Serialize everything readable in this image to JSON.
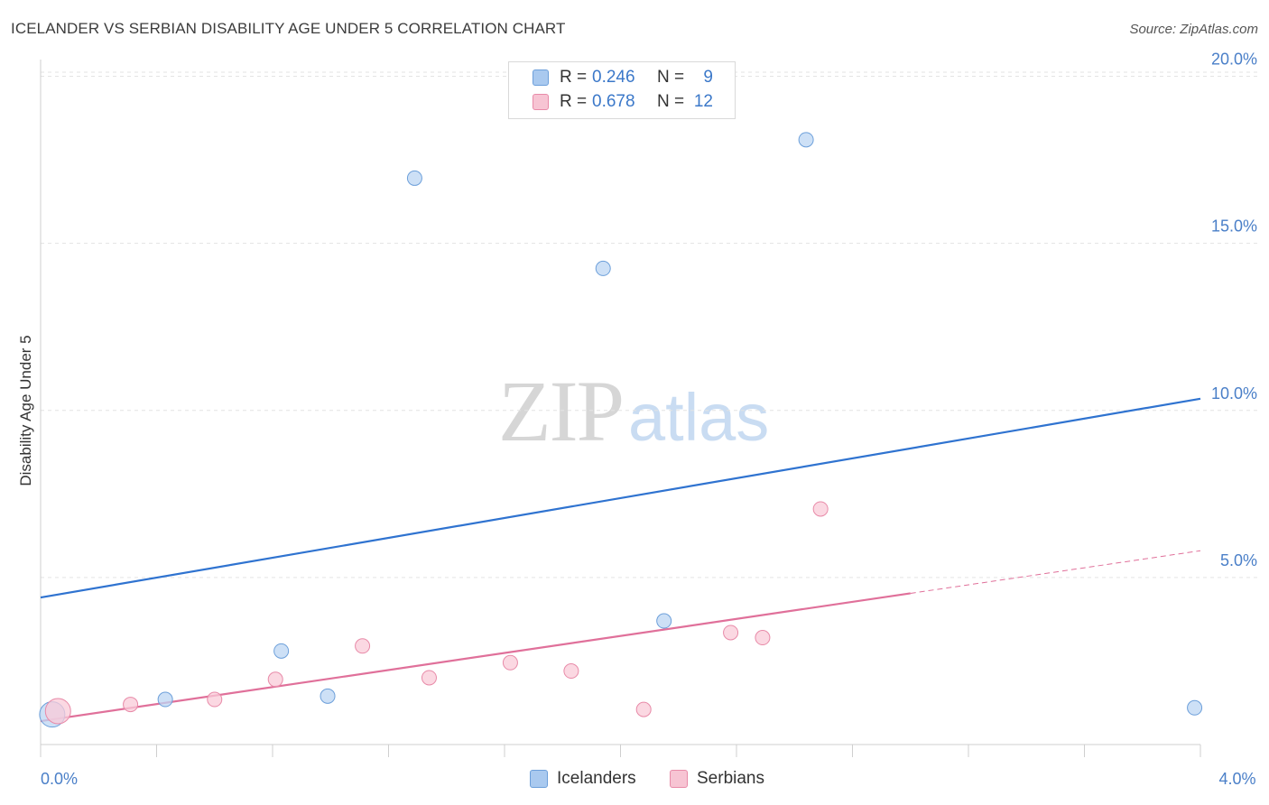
{
  "title": "ICELANDER VS SERBIAN DISABILITY AGE UNDER 5 CORRELATION CHART",
  "source": "Source: ZipAtlas.com",
  "watermark": {
    "zip": "ZIP",
    "atlas": "atlas"
  },
  "legend": {
    "rows": [
      {
        "r_label": "R =",
        "r_value": "0.246",
        "n_label": "N =",
        "n_value": "9",
        "color": "#a9c9ef",
        "border": "#6c9fda"
      },
      {
        "r_label": "R =",
        "r_value": "0.678",
        "n_label": "N =",
        "n_value": "12",
        "color": "#f7c4d3",
        "border": "#e88aa8"
      }
    ]
  },
  "bottom_legend": [
    {
      "label": "Icelanders",
      "color": "#a9c9ef",
      "border": "#6c9fda"
    },
    {
      "label": "Serbians",
      "color": "#f7c4d3",
      "border": "#e88aa8"
    }
  ],
  "chart_data": {
    "type": "scatter",
    "title": "ICELANDER VS SERBIAN DISABILITY AGE UNDER 5 CORRELATION CHART",
    "xlabel": "",
    "ylabel": "Disability Age Under 5",
    "xlim": [
      0,
      4.0
    ],
    "ylim": [
      0,
      20.5
    ],
    "x_tick_labels": [
      {
        "value": 0,
        "label": "0.0%"
      },
      {
        "value": 4.0,
        "label": "4.0%"
      }
    ],
    "y_tick_labels": [
      {
        "value": 5,
        "label": "5.0%"
      },
      {
        "value": 10,
        "label": "10.0%"
      },
      {
        "value": 15,
        "label": "15.0%"
      },
      {
        "value": 20,
        "label": "20.0%"
      }
    ],
    "series": [
      {
        "name": "Icelanders",
        "color": "#6c9fda",
        "fill": "#bcd5f3",
        "line_color": "#2f73d0",
        "trend": {
          "x": [
            0,
            4.0
          ],
          "y": [
            4.4,
            10.35
          ],
          "dashed_from": null
        },
        "points": [
          {
            "x": 0.04,
            "y": 0.9,
            "size": "large"
          },
          {
            "x": 0.43,
            "y": 1.35,
            "size": "normal"
          },
          {
            "x": 0.83,
            "y": 2.8,
            "size": "normal"
          },
          {
            "x": 0.99,
            "y": 1.45,
            "size": "normal"
          },
          {
            "x": 1.29,
            "y": 16.95,
            "size": "normal"
          },
          {
            "x": 1.94,
            "y": 14.25,
            "size": "normal"
          },
          {
            "x": 2.15,
            "y": 3.7,
            "size": "normal"
          },
          {
            "x": 2.64,
            "y": 18.1,
            "size": "normal"
          },
          {
            "x": 3.98,
            "y": 1.1,
            "size": "normal"
          }
        ]
      },
      {
        "name": "Serbians",
        "color": "#e88aa8",
        "fill": "#f9cbd8",
        "line_color": "#e0709a",
        "trend": {
          "x": [
            0,
            4.0
          ],
          "y": [
            0.7,
            5.8
          ],
          "dashed_from": 3.0
        },
        "points": [
          {
            "x": 0.06,
            "y": 1.0,
            "size": "large"
          },
          {
            "x": 0.31,
            "y": 1.2,
            "size": "normal"
          },
          {
            "x": 0.6,
            "y": 1.35,
            "size": "normal"
          },
          {
            "x": 0.81,
            "y": 1.95,
            "size": "normal"
          },
          {
            "x": 1.11,
            "y": 2.95,
            "size": "normal"
          },
          {
            "x": 1.34,
            "y": 2.0,
            "size": "normal"
          },
          {
            "x": 1.62,
            "y": 2.45,
            "size": "normal"
          },
          {
            "x": 1.83,
            "y": 2.2,
            "size": "normal"
          },
          {
            "x": 2.08,
            "y": 1.05,
            "size": "normal"
          },
          {
            "x": 2.38,
            "y": 3.35,
            "size": "normal"
          },
          {
            "x": 2.49,
            "y": 3.2,
            "size": "normal"
          },
          {
            "x": 2.69,
            "y": 7.05,
            "size": "normal"
          }
        ]
      }
    ]
  }
}
